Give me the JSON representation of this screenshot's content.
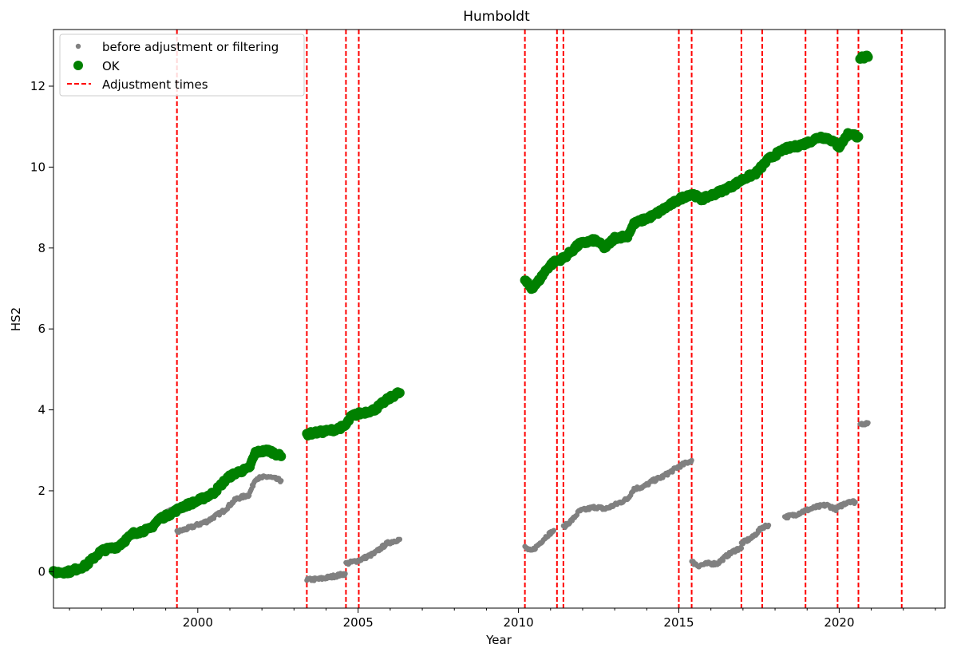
{
  "chart_data": {
    "type": "scatter",
    "title": "Humboldt",
    "xlabel": "Year",
    "ylabel": "HS2",
    "xlim": [
      1995.5,
      2023.3
    ],
    "ylim": [
      -0.9,
      13.4
    ],
    "x_ticks": [
      2000,
      2005,
      2010,
      2015,
      2020
    ],
    "x_tick_labels": [
      "2000",
      "2005",
      "2010",
      "2015",
      "2020"
    ],
    "y_ticks": [
      0,
      2,
      4,
      6,
      8,
      10,
      12
    ],
    "y_tick_labels": [
      "0",
      "2",
      "4",
      "6",
      "8",
      "10",
      "12"
    ],
    "legend": {
      "position": "top-left",
      "entries": [
        {
          "label": "before adjustment or filtering",
          "marker": "small-dot",
          "color": "#808080"
        },
        {
          "label": "OK",
          "marker": "large-dot",
          "color": "#008000"
        },
        {
          "label": "Adjustment times",
          "marker": "dashed-line",
          "color": "#ff0000"
        }
      ]
    },
    "adjustment_times": [
      1999.35,
      2003.4,
      2004.62,
      2005.02,
      2010.2,
      2011.2,
      2011.4,
      2015.0,
      2015.4,
      2016.95,
      2017.6,
      2018.95,
      2019.95,
      2020.6,
      2021.95
    ],
    "series": [
      {
        "name": "before adjustment or filtering",
        "color": "#808080",
        "segments": [
          [
            [
              1995.5,
              -0.02
            ],
            [
              1996.0,
              0.0
            ],
            [
              1996.5,
              0.15
            ],
            [
              1997.0,
              0.52
            ],
            [
              1997.5,
              0.62
            ],
            [
              1998.0,
              0.95
            ],
            [
              1998.5,
              1.05
            ],
            [
              1999.0,
              1.45
            ],
            [
              1999.3,
              1.55
            ]
          ],
          [
            [
              1999.35,
              0.98
            ],
            [
              1999.8,
              1.1
            ],
            [
              2000.3,
              1.25
            ],
            [
              2000.8,
              1.5
            ],
            [
              2001.2,
              1.8
            ],
            [
              2001.6,
              1.9
            ],
            [
              2001.8,
              2.3
            ],
            [
              2002.2,
              2.35
            ],
            [
              2002.6,
              2.25
            ]
          ],
          [
            [
              2003.4,
              -0.2
            ],
            [
              2003.8,
              -0.18
            ],
            [
              2004.2,
              -0.12
            ],
            [
              2004.6,
              -0.05
            ]
          ],
          [
            [
              2004.62,
              0.2
            ],
            [
              2005.02,
              0.28
            ],
            [
              2005.5,
              0.45
            ],
            [
              2005.9,
              0.7
            ],
            [
              2006.2,
              0.78
            ],
            [
              2006.3,
              0.8
            ]
          ],
          [
            [
              2010.2,
              0.6
            ],
            [
              2010.4,
              0.5
            ],
            [
              2010.6,
              0.65
            ],
            [
              2010.9,
              0.9
            ],
            [
              2011.1,
              1.02
            ]
          ],
          [
            [
              2011.4,
              1.1
            ],
            [
              2011.7,
              1.3
            ],
            [
              2011.9,
              1.5
            ],
            [
              2012.4,
              1.6
            ],
            [
              2012.7,
              1.55
            ],
            [
              2013.0,
              1.65
            ],
            [
              2013.4,
              1.8
            ],
            [
              2013.6,
              2.05
            ],
            [
              2013.9,
              2.1
            ],
            [
              2014.2,
              2.25
            ],
            [
              2014.5,
              2.35
            ],
            [
              2014.8,
              2.5
            ],
            [
              2015.0,
              2.6
            ],
            [
              2015.4,
              2.75
            ]
          ],
          [
            [
              2015.4,
              0.25
            ],
            [
              2015.6,
              0.15
            ],
            [
              2015.9,
              0.2
            ],
            [
              2016.2,
              0.2
            ],
            [
              2016.5,
              0.4
            ],
            [
              2016.8,
              0.55
            ],
            [
              2016.95,
              0.58
            ]
          ],
          [
            [
              2016.95,
              0.7
            ],
            [
              2017.3,
              0.85
            ],
            [
              2017.6,
              1.1
            ],
            [
              2017.8,
              1.15
            ]
          ],
          [
            [
              2018.3,
              1.35
            ],
            [
              2018.6,
              1.4
            ],
            [
              2018.9,
              1.5
            ],
            [
              2019.3,
              1.6
            ],
            [
              2019.6,
              1.65
            ],
            [
              2019.9,
              1.55
            ],
            [
              2020.3,
              1.75
            ],
            [
              2020.5,
              1.72
            ]
          ],
          [
            [
              2020.65,
              3.65
            ],
            [
              2020.9,
              3.68
            ]
          ]
        ]
      },
      {
        "name": "OK",
        "color": "#008000",
        "segments": [
          [
            [
              1995.5,
              -0.02
            ],
            [
              1996.0,
              0.0
            ],
            [
              1996.5,
              0.15
            ],
            [
              1997.0,
              0.52
            ],
            [
              1997.5,
              0.62
            ],
            [
              1998.0,
              0.95
            ],
            [
              1998.5,
              1.05
            ],
            [
              1998.8,
              1.3
            ],
            [
              1999.2,
              1.45
            ],
            [
              1999.5,
              1.6
            ],
            [
              2000.0,
              1.75
            ],
            [
              2000.5,
              1.95
            ],
            [
              2000.9,
              2.3
            ],
            [
              2001.2,
              2.45
            ],
            [
              2001.6,
              2.55
            ],
            [
              2001.8,
              2.95
            ],
            [
              2002.2,
              3.0
            ],
            [
              2002.6,
              2.85
            ]
          ],
          [
            [
              2003.4,
              3.4
            ],
            [
              2003.8,
              3.45
            ],
            [
              2004.2,
              3.5
            ],
            [
              2004.6,
              3.6
            ],
            [
              2004.8,
              3.85
            ],
            [
              2005.0,
              3.9
            ],
            [
              2005.5,
              4.0
            ],
            [
              2005.9,
              4.25
            ],
            [
              2006.2,
              4.4
            ],
            [
              2006.3,
              4.42
            ]
          ],
          [
            [
              2010.2,
              7.2
            ],
            [
              2010.4,
              7.0
            ],
            [
              2010.6,
              7.15
            ],
            [
              2010.9,
              7.5
            ],
            [
              2011.1,
              7.65
            ],
            [
              2011.4,
              7.75
            ],
            [
              2011.7,
              7.95
            ],
            [
              2011.9,
              8.1
            ],
            [
              2012.4,
              8.2
            ],
            [
              2012.7,
              8.0
            ],
            [
              2013.0,
              8.25
            ],
            [
              2013.4,
              8.3
            ],
            [
              2013.6,
              8.6
            ],
            [
              2013.9,
              8.7
            ],
            [
              2014.2,
              8.8
            ],
            [
              2014.5,
              8.95
            ],
            [
              2014.8,
              9.1
            ],
            [
              2015.0,
              9.2
            ],
            [
              2015.4,
              9.35
            ],
            [
              2015.7,
              9.2
            ],
            [
              2016.0,
              9.3
            ],
            [
              2016.3,
              9.4
            ],
            [
              2016.7,
              9.55
            ],
            [
              2017.0,
              9.7
            ],
            [
              2017.4,
              9.85
            ],
            [
              2017.8,
              10.2
            ],
            [
              2018.3,
              10.45
            ],
            [
              2018.6,
              10.5
            ],
            [
              2019.0,
              10.6
            ],
            [
              2019.4,
              10.75
            ],
            [
              2019.7,
              10.7
            ],
            [
              2020.0,
              10.5
            ],
            [
              2020.3,
              10.85
            ],
            [
              2020.6,
              10.75
            ]
          ],
          [
            [
              2020.65,
              12.7
            ],
            [
              2020.9,
              12.72
            ]
          ]
        ]
      }
    ]
  }
}
